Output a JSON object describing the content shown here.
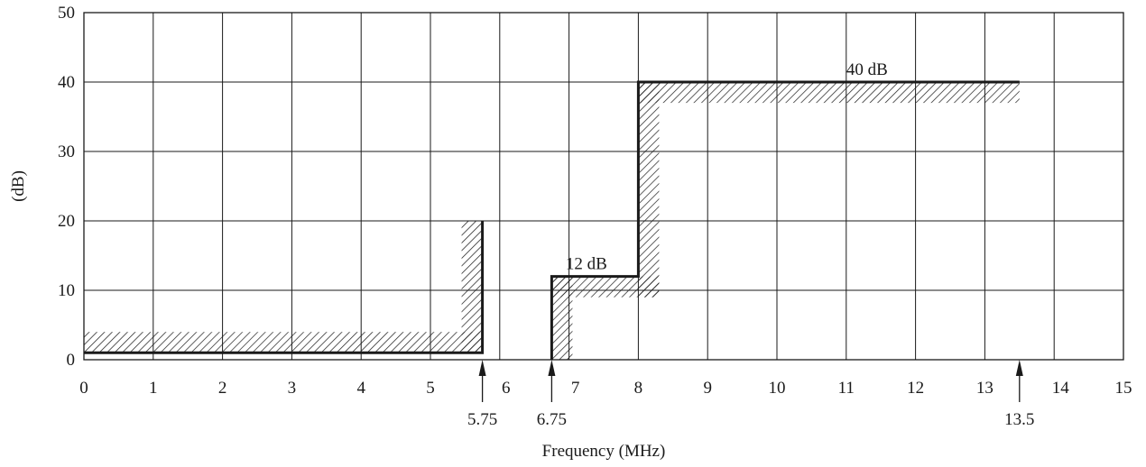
{
  "chart_data": {
    "type": "line",
    "title": "",
    "xlabel": "Frequency (MHz)",
    "ylabel": "(dB)",
    "xlim": [
      0,
      15
    ],
    "ylim": [
      0,
      50
    ],
    "x_ticks": [
      0,
      1,
      2,
      3,
      4,
      5,
      6,
      7,
      8,
      9,
      10,
      11,
      12,
      13,
      14,
      15
    ],
    "y_ticks": [
      0,
      10,
      20,
      30,
      40,
      50
    ],
    "grid": true,
    "legend": "none",
    "series": [
      {
        "x": [
          0,
          5.75,
          5.75
        ],
        "y": [
          1,
          1,
          20
        ]
      },
      {
        "x": [
          6.75,
          6.75,
          8,
          8,
          13.5
        ],
        "y": [
          0,
          12,
          12,
          40,
          40
        ]
      }
    ],
    "hatched_regions": [
      {
        "x": [
          0,
          5.75
        ],
        "y_from": 1,
        "y_to": 4
      },
      {
        "x": [
          5.45,
          5.75
        ],
        "y_from": 1,
        "y_to": 20
      },
      {
        "x": [
          6.75,
          7.05
        ],
        "y_from": 0,
        "y_to": 12
      },
      {
        "x": [
          6.75,
          8.3
        ],
        "y_from": 9,
        "y_to": 12
      },
      {
        "x": [
          8,
          8.3
        ],
        "y_from": 9,
        "y_to": 40
      },
      {
        "x": [
          8,
          13.5
        ],
        "y_from": 37,
        "y_to": 40
      }
    ],
    "annotations": [
      {
        "text": "12 dB",
        "x": 7.25,
        "y": 12
      },
      {
        "text": "40 dB",
        "x": 11.3,
        "y": 40
      }
    ],
    "marked_frequencies": [
      {
        "text": "5.75",
        "x": 5.75
      },
      {
        "text": "6.75",
        "x": 6.75
      },
      {
        "text": "13.5",
        "x": 13.5
      }
    ],
    "colors": {
      "line": "#1a1a1a",
      "grid": "#1a1a1a",
      "background": "#ffffff"
    }
  }
}
